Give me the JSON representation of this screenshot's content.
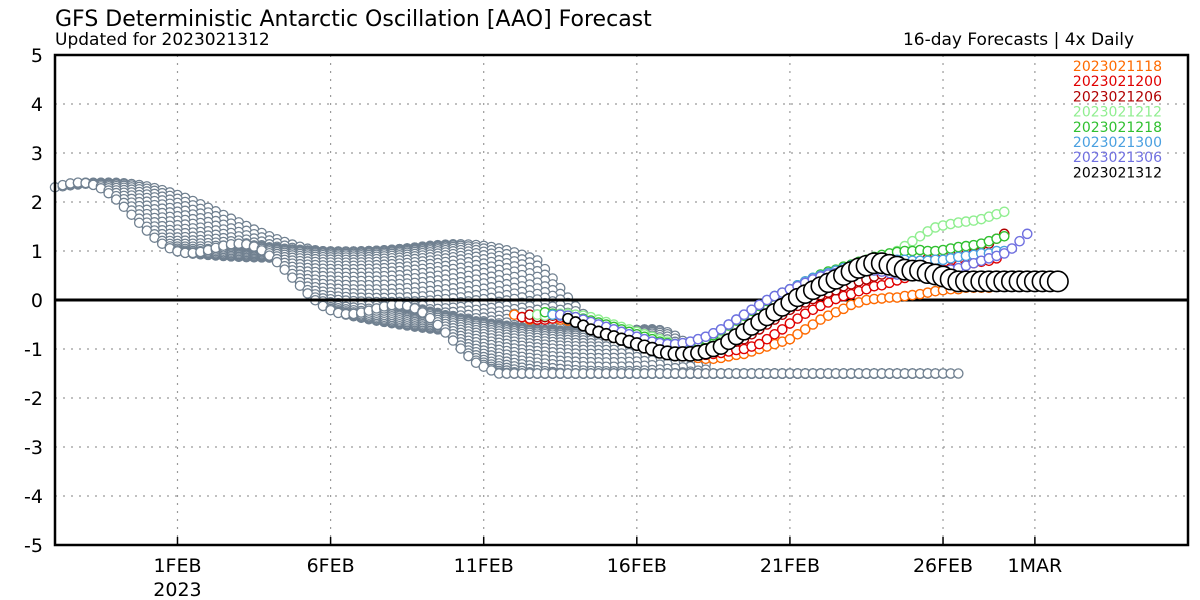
{
  "chart_data": {
    "type": "scatter",
    "title": "GFS Deterministic Antarctic Oscillation [AAO] Forecast",
    "subtitle": "Updated for 2023021312",
    "right_subtitle": "16-day Forecasts | 4x Daily",
    "xlabel": "",
    "ylabel": "",
    "x_range": [
      "2023-01-28",
      "2023-03-06"
    ],
    "ylim": [
      -5,
      5
    ],
    "x_ticks": [
      {
        "date": "2023-02-01",
        "label": "1FEB",
        "sublabel": "2023"
      },
      {
        "date": "2023-02-06",
        "label": "6FEB"
      },
      {
        "date": "2023-02-11",
        "label": "11FEB"
      },
      {
        "date": "2023-02-16",
        "label": "16FEB"
      },
      {
        "date": "2023-02-21",
        "label": "21FEB"
      },
      {
        "date": "2023-02-26",
        "label": "26FEB"
      },
      {
        "date": "2023-03-01",
        "label": "1MAR"
      }
    ],
    "y_ticks": [
      "5",
      "4",
      "3",
      "2",
      "1",
      "0",
      "-1",
      "-2",
      "-3",
      "-4",
      "-5"
    ],
    "grid": true,
    "zero_line": true,
    "legend_position": "top-right",
    "older_runs_color": "#708090",
    "series": [
      {
        "name": "2023021118",
        "color": "#ff6a00",
        "start": "2023-02-12",
        "x_step_days": 0.25,
        "values": [
          -0.3,
          -0.35,
          -0.4,
          -0.4,
          -0.38,
          -0.38,
          -0.4,
          -0.42,
          -0.45,
          -0.5,
          -0.55,
          -0.6,
          -0.65,
          -0.7,
          -0.75,
          -0.8,
          -0.85,
          -0.9,
          -0.95,
          -1.0,
          -1.05,
          -1.1,
          -1.12,
          -1.15,
          -1.18,
          -1.2,
          -1.2,
          -1.18,
          -1.15,
          -1.12,
          -1.1,
          -1.05,
          -1.0,
          -0.95,
          -0.9,
          -0.85,
          -0.8,
          -0.7,
          -0.6,
          -0.5,
          -0.4,
          -0.32,
          -0.25,
          -0.18,
          -0.1,
          -0.05,
          0.0,
          0.02,
          0.03,
          0.05,
          0.05,
          0.08,
          0.1,
          0.12,
          0.15,
          0.18,
          0.2,
          0.22,
          0.22,
          0.25,
          0.25,
          0.25,
          0.25
        ]
      },
      {
        "name": "2023021200",
        "color": "#e00000",
        "start": "2023-02-12.25",
        "x_step_days": 0.25,
        "values": [
          -0.35,
          -0.38,
          -0.4,
          -0.4,
          -0.38,
          -0.36,
          -0.35,
          -0.38,
          -0.4,
          -0.45,
          -0.5,
          -0.55,
          -0.6,
          -0.65,
          -0.7,
          -0.75,
          -0.8,
          -0.85,
          -0.9,
          -0.95,
          -1.0,
          -1.05,
          -1.08,
          -1.1,
          -1.12,
          -1.1,
          -1.08,
          -1.05,
          -1.02,
          -1.0,
          -0.95,
          -0.9,
          -0.8,
          -0.7,
          -0.6,
          -0.48,
          -0.38,
          -0.28,
          -0.2,
          -0.12,
          -0.05,
          0.02,
          0.08,
          0.12,
          0.18,
          0.22,
          0.28,
          0.3,
          0.35,
          0.4,
          0.45,
          0.5,
          0.5,
          0.55,
          0.6,
          0.62,
          0.65,
          0.7,
          0.72,
          0.75,
          0.78,
          0.8,
          0.85
        ]
      },
      {
        "name": "2023021206",
        "color": "#b00000",
        "start": "2023-02-12.5",
        "x_step_days": 0.25,
        "values": [
          -0.3,
          -0.35,
          -0.35,
          -0.32,
          -0.3,
          -0.3,
          -0.32,
          -0.35,
          -0.4,
          -0.45,
          -0.5,
          -0.55,
          -0.6,
          -0.65,
          -0.7,
          -0.75,
          -0.8,
          -0.85,
          -0.9,
          -0.95,
          -0.98,
          -1.0,
          -1.0,
          -0.98,
          -0.95,
          -0.92,
          -0.9,
          -0.85,
          -0.8,
          -0.7,
          -0.6,
          -0.5,
          -0.4,
          -0.3,
          -0.2,
          -0.12,
          -0.05,
          0.02,
          0.1,
          0.15,
          0.2,
          0.28,
          0.32,
          0.38,
          0.42,
          0.48,
          0.52,
          0.58,
          0.62,
          0.7,
          0.75,
          0.8,
          0.85,
          0.9,
          0.95,
          1.0,
          1.02,
          1.05,
          1.1,
          1.12,
          1.15,
          1.25,
          1.35
        ]
      },
      {
        "name": "2023021212",
        "color": "#90ee90",
        "start": "2023-02-12.75",
        "x_step_days": 0.25,
        "values": [
          -0.3,
          -0.32,
          -0.3,
          -0.28,
          -0.28,
          -0.3,
          -0.32,
          -0.35,
          -0.4,
          -0.45,
          -0.5,
          -0.55,
          -0.6,
          -0.65,
          -0.7,
          -0.75,
          -0.8,
          -0.85,
          -0.9,
          -0.92,
          -0.95,
          -0.95,
          -0.92,
          -0.9,
          -0.85,
          -0.8,
          -0.7,
          -0.6,
          -0.5,
          -0.4,
          -0.3,
          -0.2,
          -0.1,
          0.0,
          0.1,
          0.18,
          0.25,
          0.32,
          0.4,
          0.45,
          0.5,
          0.55,
          0.62,
          0.7,
          0.78,
          0.85,
          0.92,
          1.0,
          1.1,
          1.2,
          1.3,
          1.4,
          1.48,
          1.52,
          1.55,
          1.58,
          1.6,
          1.62,
          1.65,
          1.7,
          1.75,
          1.8
        ]
      },
      {
        "name": "2023021218",
        "color": "#30c030",
        "start": "2023-02-13",
        "x_step_days": 0.25,
        "values": [
          -0.25,
          -0.28,
          -0.3,
          -0.32,
          -0.35,
          -0.38,
          -0.42,
          -0.46,
          -0.5,
          -0.55,
          -0.6,
          -0.65,
          -0.7,
          -0.75,
          -0.8,
          -0.85,
          -0.88,
          -0.9,
          -0.9,
          -0.88,
          -0.85,
          -0.8,
          -0.72,
          -0.62,
          -0.52,
          -0.42,
          -0.32,
          -0.22,
          -0.12,
          -0.02,
          0.08,
          0.15,
          0.22,
          0.3,
          0.38,
          0.45,
          0.52,
          0.58,
          0.62,
          0.68,
          0.72,
          0.78,
          0.82,
          0.88,
          0.92,
          0.95,
          0.98,
          1.0,
          1.0,
          1.02,
          1.0,
          1.0,
          1.02,
          1.05,
          1.08,
          1.1,
          1.12,
          1.15,
          1.2,
          1.25,
          1.3
        ]
      },
      {
        "name": "2023021300",
        "color": "#4aa0e0",
        "start": "2023-02-13.25",
        "x_step_days": 0.25,
        "values": [
          -0.3,
          -0.32,
          -0.35,
          -0.38,
          -0.42,
          -0.46,
          -0.5,
          -0.55,
          -0.6,
          -0.65,
          -0.7,
          -0.75,
          -0.8,
          -0.85,
          -0.88,
          -0.9,
          -0.9,
          -0.88,
          -0.85,
          -0.8,
          -0.75,
          -0.68,
          -0.6,
          -0.5,
          -0.4,
          -0.3,
          -0.2,
          -0.1,
          0.0,
          0.08,
          0.15,
          0.22,
          0.3,
          0.38,
          0.45,
          0.5,
          0.55,
          0.6,
          0.65,
          0.7,
          0.72,
          0.75,
          0.78,
          0.8,
          0.82,
          0.82,
          0.82,
          0.8,
          0.8,
          0.8,
          0.82,
          0.82,
          0.85,
          0.88,
          0.9,
          0.92,
          0.95,
          0.95,
          1.0,
          1.0
        ]
      },
      {
        "name": "2023021306",
        "color": "#7070e0",
        "start": "2023-02-13.5",
        "x_step_days": 0.25,
        "values": [
          -0.3,
          -0.32,
          -0.35,
          -0.4,
          -0.45,
          -0.5,
          -0.55,
          -0.6,
          -0.65,
          -0.7,
          -0.75,
          -0.8,
          -0.85,
          -0.88,
          -0.9,
          -0.9,
          -0.88,
          -0.85,
          -0.8,
          -0.75,
          -0.68,
          -0.6,
          -0.5,
          -0.4,
          -0.3,
          -0.2,
          -0.1,
          0.0,
          0.08,
          0.15,
          0.22,
          0.28,
          0.35,
          0.42,
          0.48,
          0.52,
          0.55,
          0.58,
          0.6,
          0.62,
          0.62,
          0.6,
          0.58,
          0.55,
          0.52,
          0.5,
          0.5,
          0.52,
          0.55,
          0.58,
          0.6,
          0.62,
          0.65,
          0.7,
          0.75,
          0.8,
          0.85,
          0.9,
          0.95,
          1.05,
          1.2,
          1.35
        ]
      },
      {
        "name": "2023021312",
        "color": "#000000",
        "start": "2023-02-13.75",
        "x_step_days": 0.25,
        "values": [
          -0.38,
          -0.45,
          -0.52,
          -0.6,
          -0.65,
          -0.7,
          -0.75,
          -0.8,
          -0.85,
          -0.9,
          -0.95,
          -1.0,
          -1.05,
          -1.08,
          -1.1,
          -1.1,
          -1.1,
          -1.08,
          -1.05,
          -1.0,
          -0.95,
          -0.85,
          -0.75,
          -0.65,
          -0.55,
          -0.45,
          -0.35,
          -0.25,
          -0.15,
          -0.05,
          0.05,
          0.12,
          0.2,
          0.28,
          0.35,
          0.42,
          0.5,
          0.58,
          0.65,
          0.7,
          0.75,
          0.75,
          0.72,
          0.68,
          0.62,
          0.6,
          0.6,
          0.55,
          0.52,
          0.48,
          0.42,
          0.38,
          0.38,
          0.38,
          0.38,
          0.38,
          0.38,
          0.38,
          0.38,
          0.38,
          0.38,
          0.38,
          0.38,
          0.38,
          0.38
        ]
      }
    ]
  }
}
